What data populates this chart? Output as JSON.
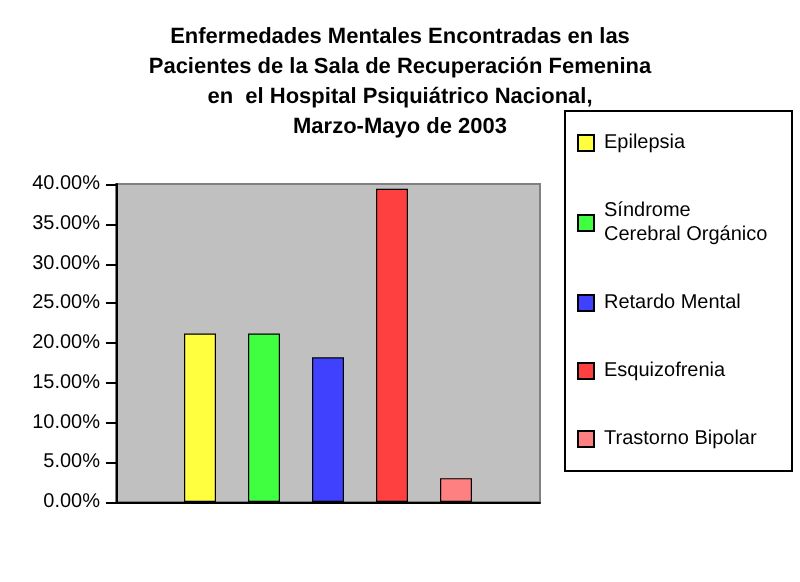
{
  "chart_data": {
    "type": "bar",
    "title": "Enfermedades Mentales Encontradas en las\nPacientes de la Sala de Recuperación Femenina\nen  el Hospital Psiquiátrico Nacional,\nMarzo-Mayo de 2003",
    "categories": [
      null
    ],
    "series": [
      {
        "name": "Epilepsia",
        "color": "#ffff40",
        "values": [
          21.2
        ]
      },
      {
        "name": "Síndrome Cerebral Orgánico",
        "color": "#40ff40",
        "values": [
          21.2
        ]
      },
      {
        "name": "Retardo Mental",
        "color": "#4040ff",
        "values": [
          18.2
        ]
      },
      {
        "name": "Esquizofrenia",
        "color": "#ff4040",
        "values": [
          39.4
        ]
      },
      {
        "name": "Trastorno Bipolar",
        "color": "#ff8080",
        "values": [
          3.0
        ]
      }
    ],
    "ylim": [
      0,
      40
    ],
    "yticks": [
      {
        "value": 0,
        "label": "0.00%"
      },
      {
        "value": 5,
        "label": "5.00%"
      },
      {
        "value": 10,
        "label": "10.00%"
      },
      {
        "value": 15,
        "label": "15.00%"
      },
      {
        "value": 20,
        "label": "20.00%"
      },
      {
        "value": 25,
        "label": "25.00%"
      },
      {
        "value": 30,
        "label": "30.00%"
      },
      {
        "value": 35,
        "label": "35.00%"
      },
      {
        "value": 40,
        "label": "40.00%"
      }
    ],
    "grid": false,
    "legend": "right"
  }
}
